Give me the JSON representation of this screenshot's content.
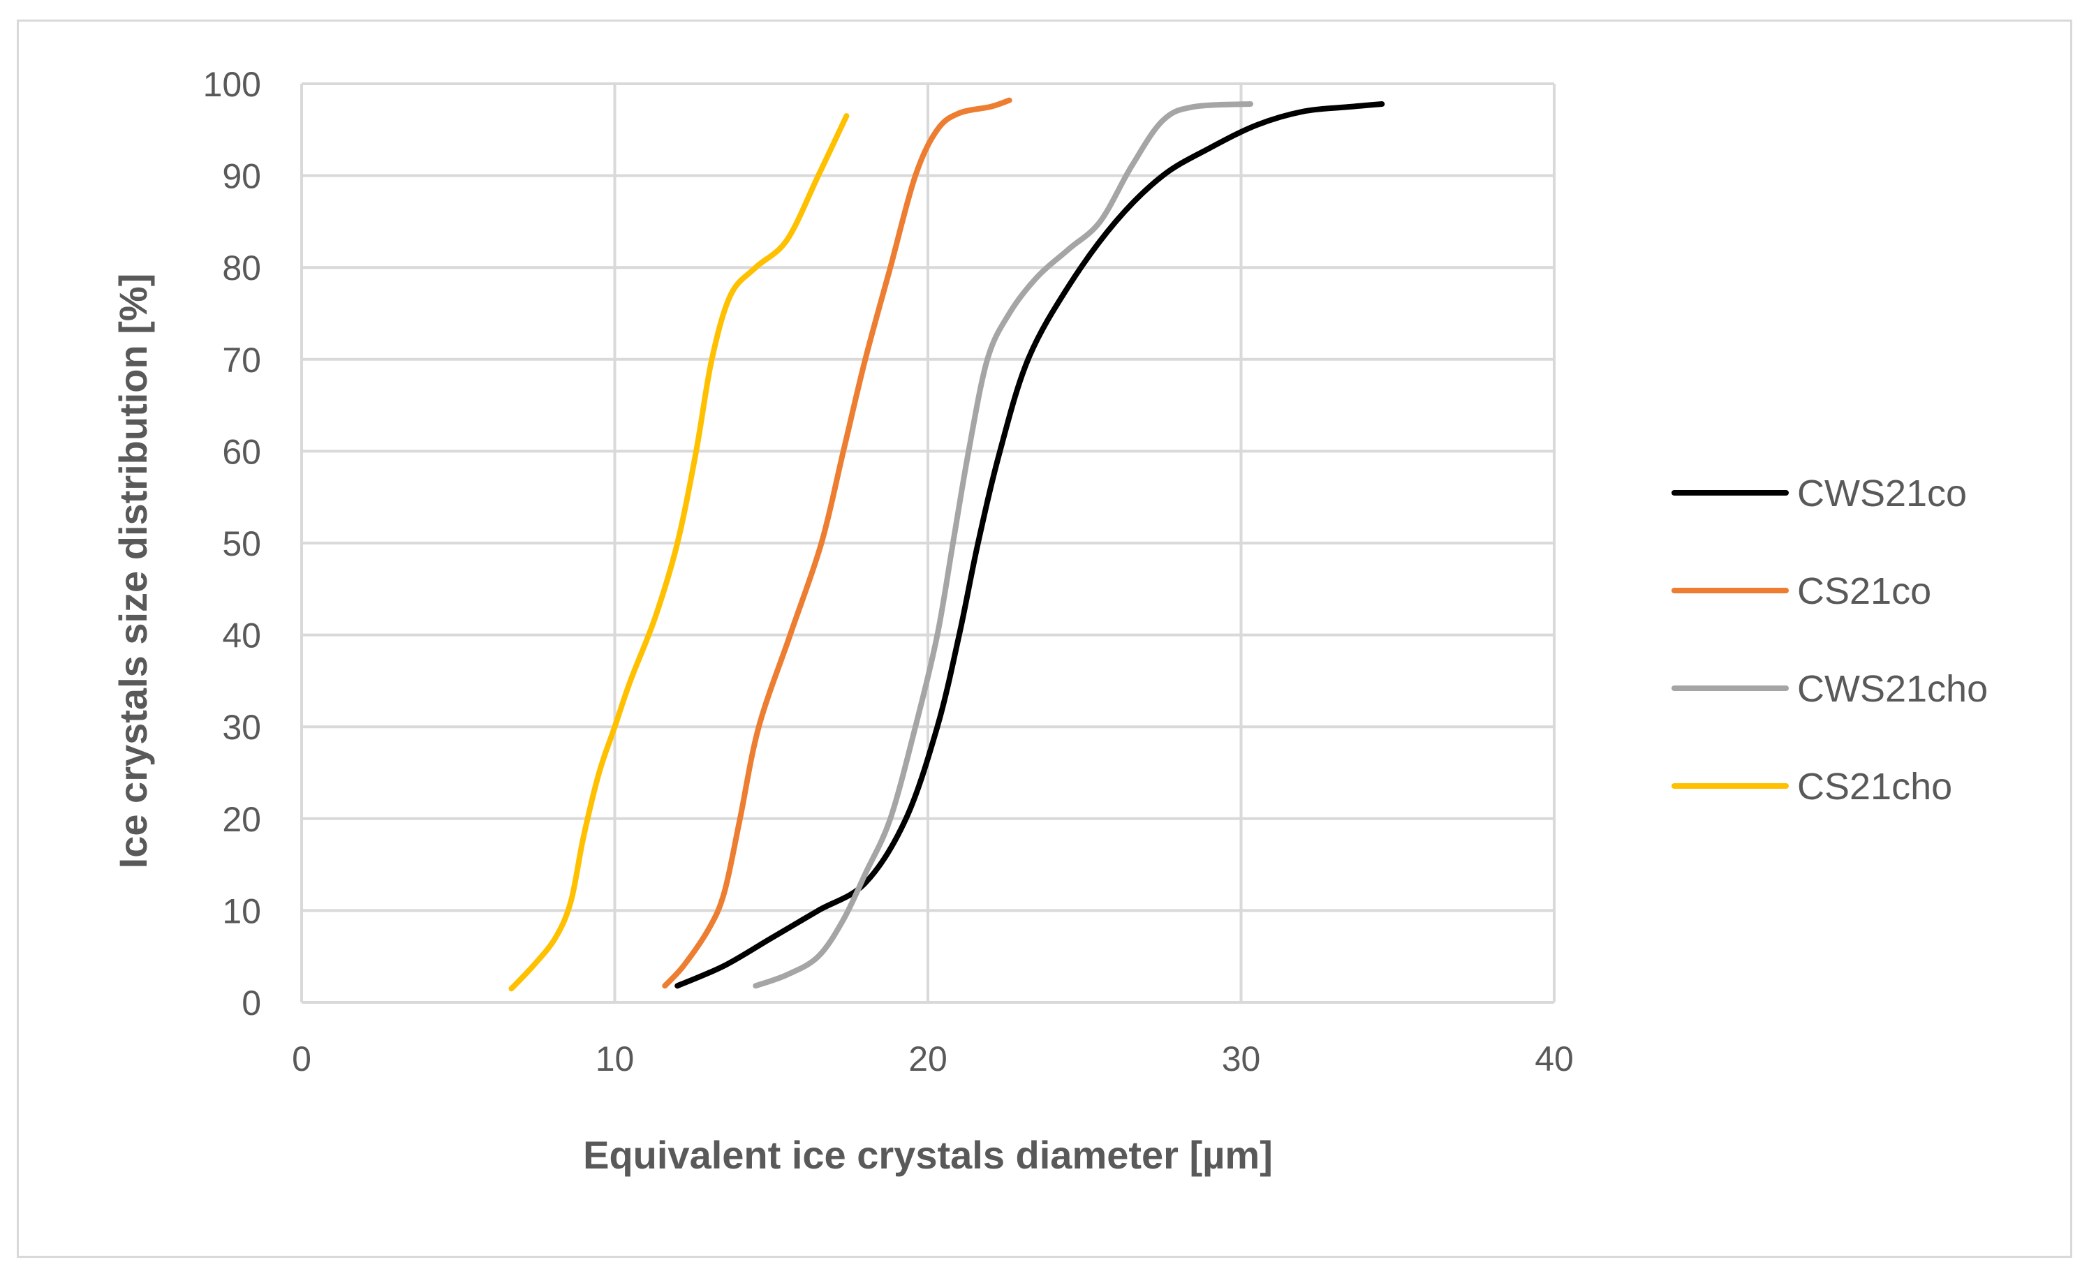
{
  "chart_data": {
    "type": "line",
    "title": "",
    "xlabel": "Equivalent ice crystals diameter [µm]",
    "ylabel": "Ice crystals size distribution [%]",
    "xlim": [
      0,
      40
    ],
    "ylim": [
      0,
      100
    ],
    "x_ticks": [
      0,
      10,
      20,
      30,
      40
    ],
    "y_ticks": [
      0,
      10,
      20,
      30,
      40,
      50,
      60,
      70,
      80,
      90,
      100
    ],
    "grid": true,
    "legend_position": "right",
    "series": [
      {
        "name": "CWS21co",
        "color": "#000000",
        "points": [
          [
            12.0,
            1.8
          ],
          [
            13.5,
            4
          ],
          [
            15.0,
            7
          ],
          [
            16.5,
            10
          ],
          [
            18.0,
            13
          ],
          [
            19.3,
            20
          ],
          [
            20.3,
            30
          ],
          [
            21.0,
            40
          ],
          [
            21.6,
            50
          ],
          [
            22.3,
            60
          ],
          [
            23.2,
            70
          ],
          [
            24.5,
            78
          ],
          [
            26.0,
            85
          ],
          [
            27.5,
            90
          ],
          [
            29.0,
            93
          ],
          [
            30.5,
            95.5
          ],
          [
            32.0,
            97
          ],
          [
            33.5,
            97.5
          ],
          [
            34.5,
            97.8
          ]
        ]
      },
      {
        "name": "CS21co",
        "color": "#ed7d31",
        "points": [
          [
            11.6,
            1.8
          ],
          [
            12.2,
            4
          ],
          [
            13.0,
            8
          ],
          [
            13.5,
            12
          ],
          [
            14.0,
            20
          ],
          [
            14.6,
            30
          ],
          [
            15.6,
            40
          ],
          [
            16.6,
            50
          ],
          [
            17.3,
            60
          ],
          [
            18.0,
            70
          ],
          [
            18.8,
            80
          ],
          [
            19.6,
            90
          ],
          [
            20.3,
            95
          ],
          [
            21.0,
            96.8
          ],
          [
            22.0,
            97.5
          ],
          [
            22.6,
            98.2
          ]
        ]
      },
      {
        "name": "CWS21cho",
        "color": "#a5a5a5",
        "points": [
          [
            14.5,
            1.8
          ],
          [
            15.5,
            3
          ],
          [
            16.5,
            5
          ],
          [
            17.3,
            9
          ],
          [
            18.0,
            14
          ],
          [
            18.8,
            20
          ],
          [
            19.6,
            30
          ],
          [
            20.3,
            40
          ],
          [
            20.8,
            50
          ],
          [
            21.3,
            60
          ],
          [
            21.9,
            70
          ],
          [
            22.6,
            75
          ],
          [
            23.5,
            79
          ],
          [
            24.5,
            82
          ],
          [
            25.5,
            85
          ],
          [
            26.5,
            91
          ],
          [
            27.5,
            96
          ],
          [
            28.5,
            97.5
          ],
          [
            30.3,
            97.8
          ]
        ]
      },
      {
        "name": "CS21cho",
        "color": "#ffc000",
        "points": [
          [
            6.7,
            1.5
          ],
          [
            7.4,
            4
          ],
          [
            8.1,
            7
          ],
          [
            8.6,
            11
          ],
          [
            9.0,
            18
          ],
          [
            9.5,
            25
          ],
          [
            10.0,
            30
          ],
          [
            10.5,
            35
          ],
          [
            11.3,
            42
          ],
          [
            12.0,
            50
          ],
          [
            12.6,
            60
          ],
          [
            13.1,
            70
          ],
          [
            13.7,
            77
          ],
          [
            14.5,
            80
          ],
          [
            15.5,
            83
          ],
          [
            16.5,
            90
          ],
          [
            17.4,
            96.5
          ]
        ]
      }
    ]
  }
}
